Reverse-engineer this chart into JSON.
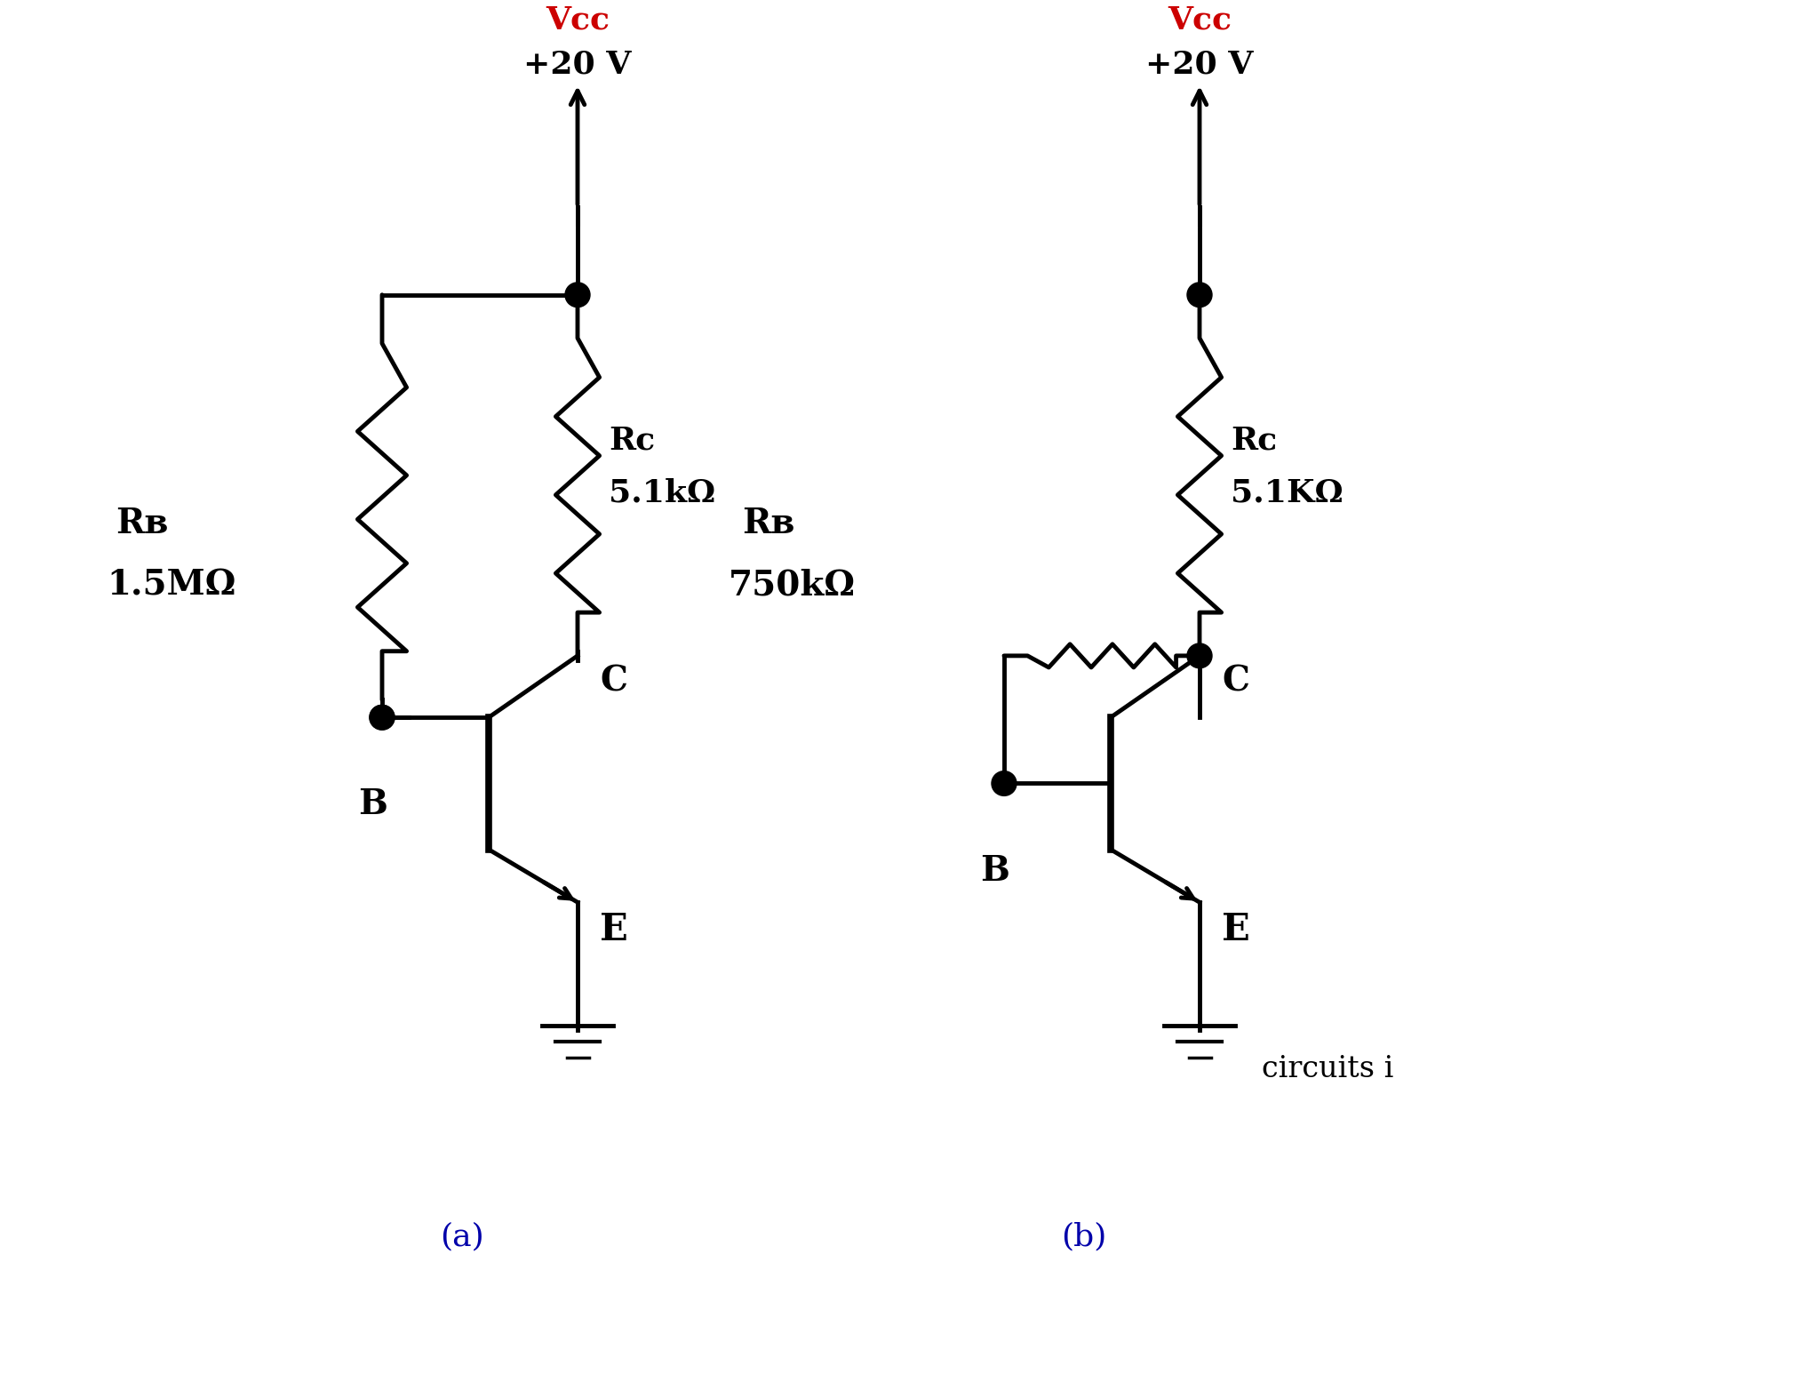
{
  "bg_color": "#ffffff",
  "line_color": "#000000",
  "vcc_color": "#cc0000",
  "label_color": "#000000",
  "fig_label_color": "#0000aa",
  "lw": 3.5,
  "circuit_a": {
    "vcc_label": "Vcc",
    "vcc_sub": "+20 V",
    "rb_label": "Rʙ",
    "rb_value": "1.5MΩ",
    "rc_label": "Rc",
    "rc_value": "5.1kΩ",
    "label": "(a)"
  },
  "circuit_b": {
    "vcc_label": "Vcc",
    "vcc_sub": "+20 V",
    "rb_label": "Rʙ",
    "rb_value": "750kΩ",
    "rc_label": "Rᴄ",
    "rc_value": "5.1KΩ",
    "label": "(b)",
    "circuits_text": "circuits i"
  }
}
